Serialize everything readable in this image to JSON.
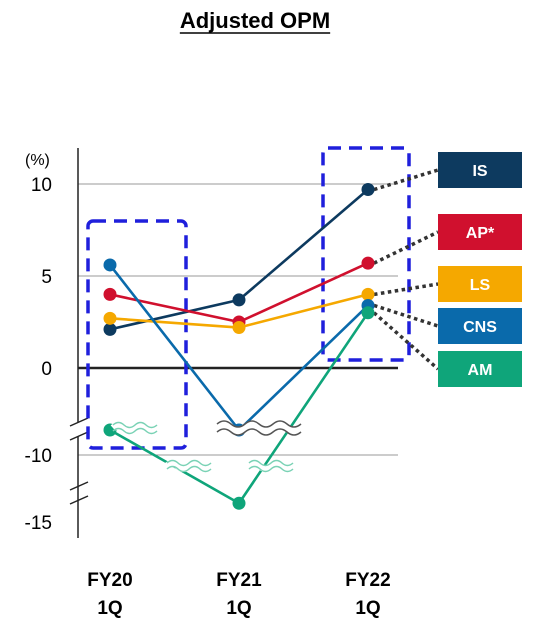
{
  "chart_data": {
    "type": "line",
    "title": "Adjusted OPM",
    "unit_label": "(%)",
    "y_ticks": [
      "10",
      "5",
      "0",
      "-10",
      "-15"
    ],
    "categories": [
      {
        "line1": "FY20",
        "line2": "1Q"
      },
      {
        "line1": "FY21",
        "line2": "1Q"
      },
      {
        "line1": "FY22",
        "line2": "1Q"
      }
    ],
    "y_axis_break": {
      "from": 0,
      "to": -10,
      "note": "axis broken between 0 and -10"
    },
    "series": [
      {
        "name": "IS",
        "color": "#0d3a5f",
        "values": [
          2.1,
          3.7,
          9.7
        ]
      },
      {
        "name": "AP*",
        "color": "#d0102e",
        "values": [
          4.0,
          2.5,
          5.7
        ]
      },
      {
        "name": "LS",
        "color": "#f5a800",
        "values": [
          2.7,
          2.2,
          4.0
        ]
      },
      {
        "name": "CNS",
        "color": "#0a6aab",
        "values": [
          5.6,
          -8.5,
          3.4
        ]
      },
      {
        "name": "AM",
        "color": "#0fa57a",
        "values": [
          -7.4,
          -13.6,
          3.0
        ]
      }
    ],
    "highlight_color": "#1f1fdc",
    "grid": true
  }
}
